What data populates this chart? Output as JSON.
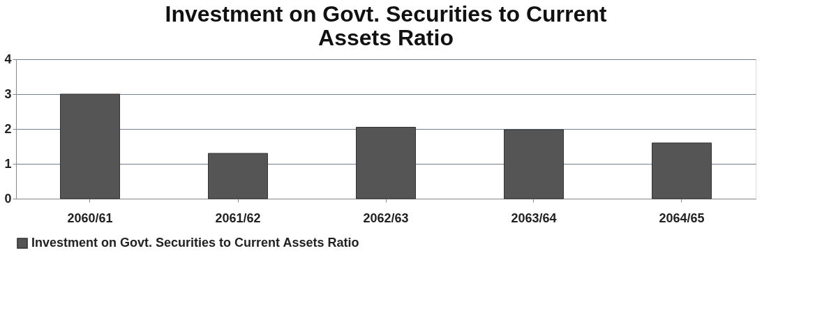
{
  "chart_data": {
    "type": "bar",
    "title": [
      "Investment on Govt. Securities to Current",
      "Assets Ratio"
    ],
    "categories": [
      "2060/61",
      "2061/62",
      "2062/63",
      "2063/64",
      "2064/65"
    ],
    "series": [
      {
        "name": "Investment on Govt. Securities to Current Assets Ratio",
        "color": "#555555",
        "values": [
          3.0,
          1.3,
          2.05,
          1.98,
          1.6
        ]
      }
    ],
    "ylim": [
      0,
      4
    ],
    "yticks": [
      0,
      1,
      2,
      3,
      4
    ],
    "grid": "y",
    "legend": "bottom"
  }
}
